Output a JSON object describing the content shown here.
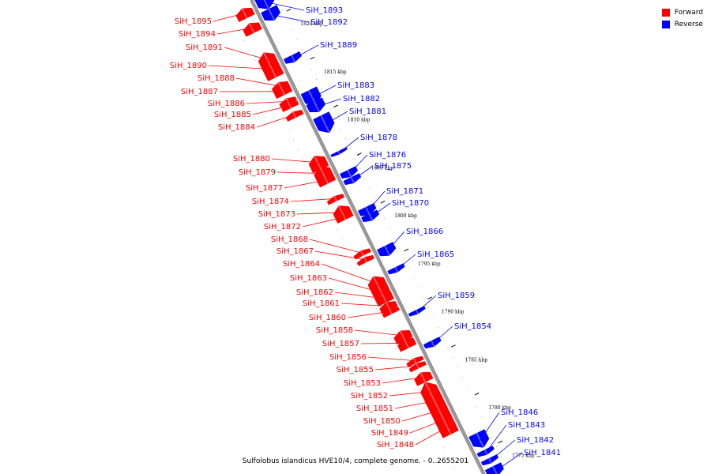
{
  "legend": [
    {
      "label": "Forward",
      "color": "#ff0000"
    },
    {
      "label": "Reverse",
      "color": "#0000ff"
    }
  ],
  "caption": "Sulfolobus islandicus HVE10/4, complete genome. - 0..2655201",
  "colors": {
    "forward": "#ff0000",
    "reverse": "#0000ff",
    "axis": "#999999"
  },
  "chart_data": {
    "type": "genome-map",
    "axis_start_kbp": 1822.4,
    "axis_end_kbp": 1773.0,
    "ticks": [
      {
        "kbp": 1820,
        "label": "1820 kbp"
      },
      {
        "kbp": 1815,
        "label": "1815 kbp"
      },
      {
        "kbp": 1810,
        "label": "1810 kbp"
      },
      {
        "kbp": 1805,
        "label": "1805 kbp"
      },
      {
        "kbp": 1800,
        "label": "1800 kbp"
      },
      {
        "kbp": 1795,
        "label": "1795 kbp"
      },
      {
        "kbp": 1790,
        "label": "1790 kbp"
      },
      {
        "kbp": 1785,
        "label": "1785 kbp"
      },
      {
        "kbp": 1780,
        "label": "1780 kbp"
      },
      {
        "kbp": 1775,
        "label": "1775 kbp"
      }
    ],
    "forward_genes": [
      "SiH_1895",
      "SiH_1894",
      "SiH_1891",
      "SiH_1890",
      "SiH_1888",
      "SiH_1887",
      "SiH_1886",
      "SiH_1885",
      "SiH_1884",
      "SiH_1880",
      "SiH_1879",
      "SiH_1877",
      "SiH_1874",
      "SiH_1873",
      "SiH_1872",
      "SiH_1868",
      "SiH_1867",
      "SiH_1864",
      "SiH_1863",
      "SiH_1862",
      "SiH_1861",
      "SiH_1860",
      "SiH_1858",
      "SiH_1857",
      "SiH_1856",
      "SiH_1855",
      "SiH_1853",
      "SiH_1852",
      "SiH_1851",
      "SiH_1850",
      "SiH_1849",
      "SiH_1848"
    ],
    "reverse_genes": [
      "SiH_1893",
      "SiH_1892",
      "SiH_1889",
      "SiH_1883",
      "SiH_1882",
      "SiH_1881",
      "SiH_1878",
      "SiH_1876",
      "SiH_1875",
      "SiH_1871",
      "SiH_1870",
      "SiH_1866",
      "SiH_1865",
      "SiH_1859",
      "SiH_1854",
      "SiH_1846",
      "SiH_1843",
      "SiH_1842",
      "SiH_1841"
    ]
  }
}
